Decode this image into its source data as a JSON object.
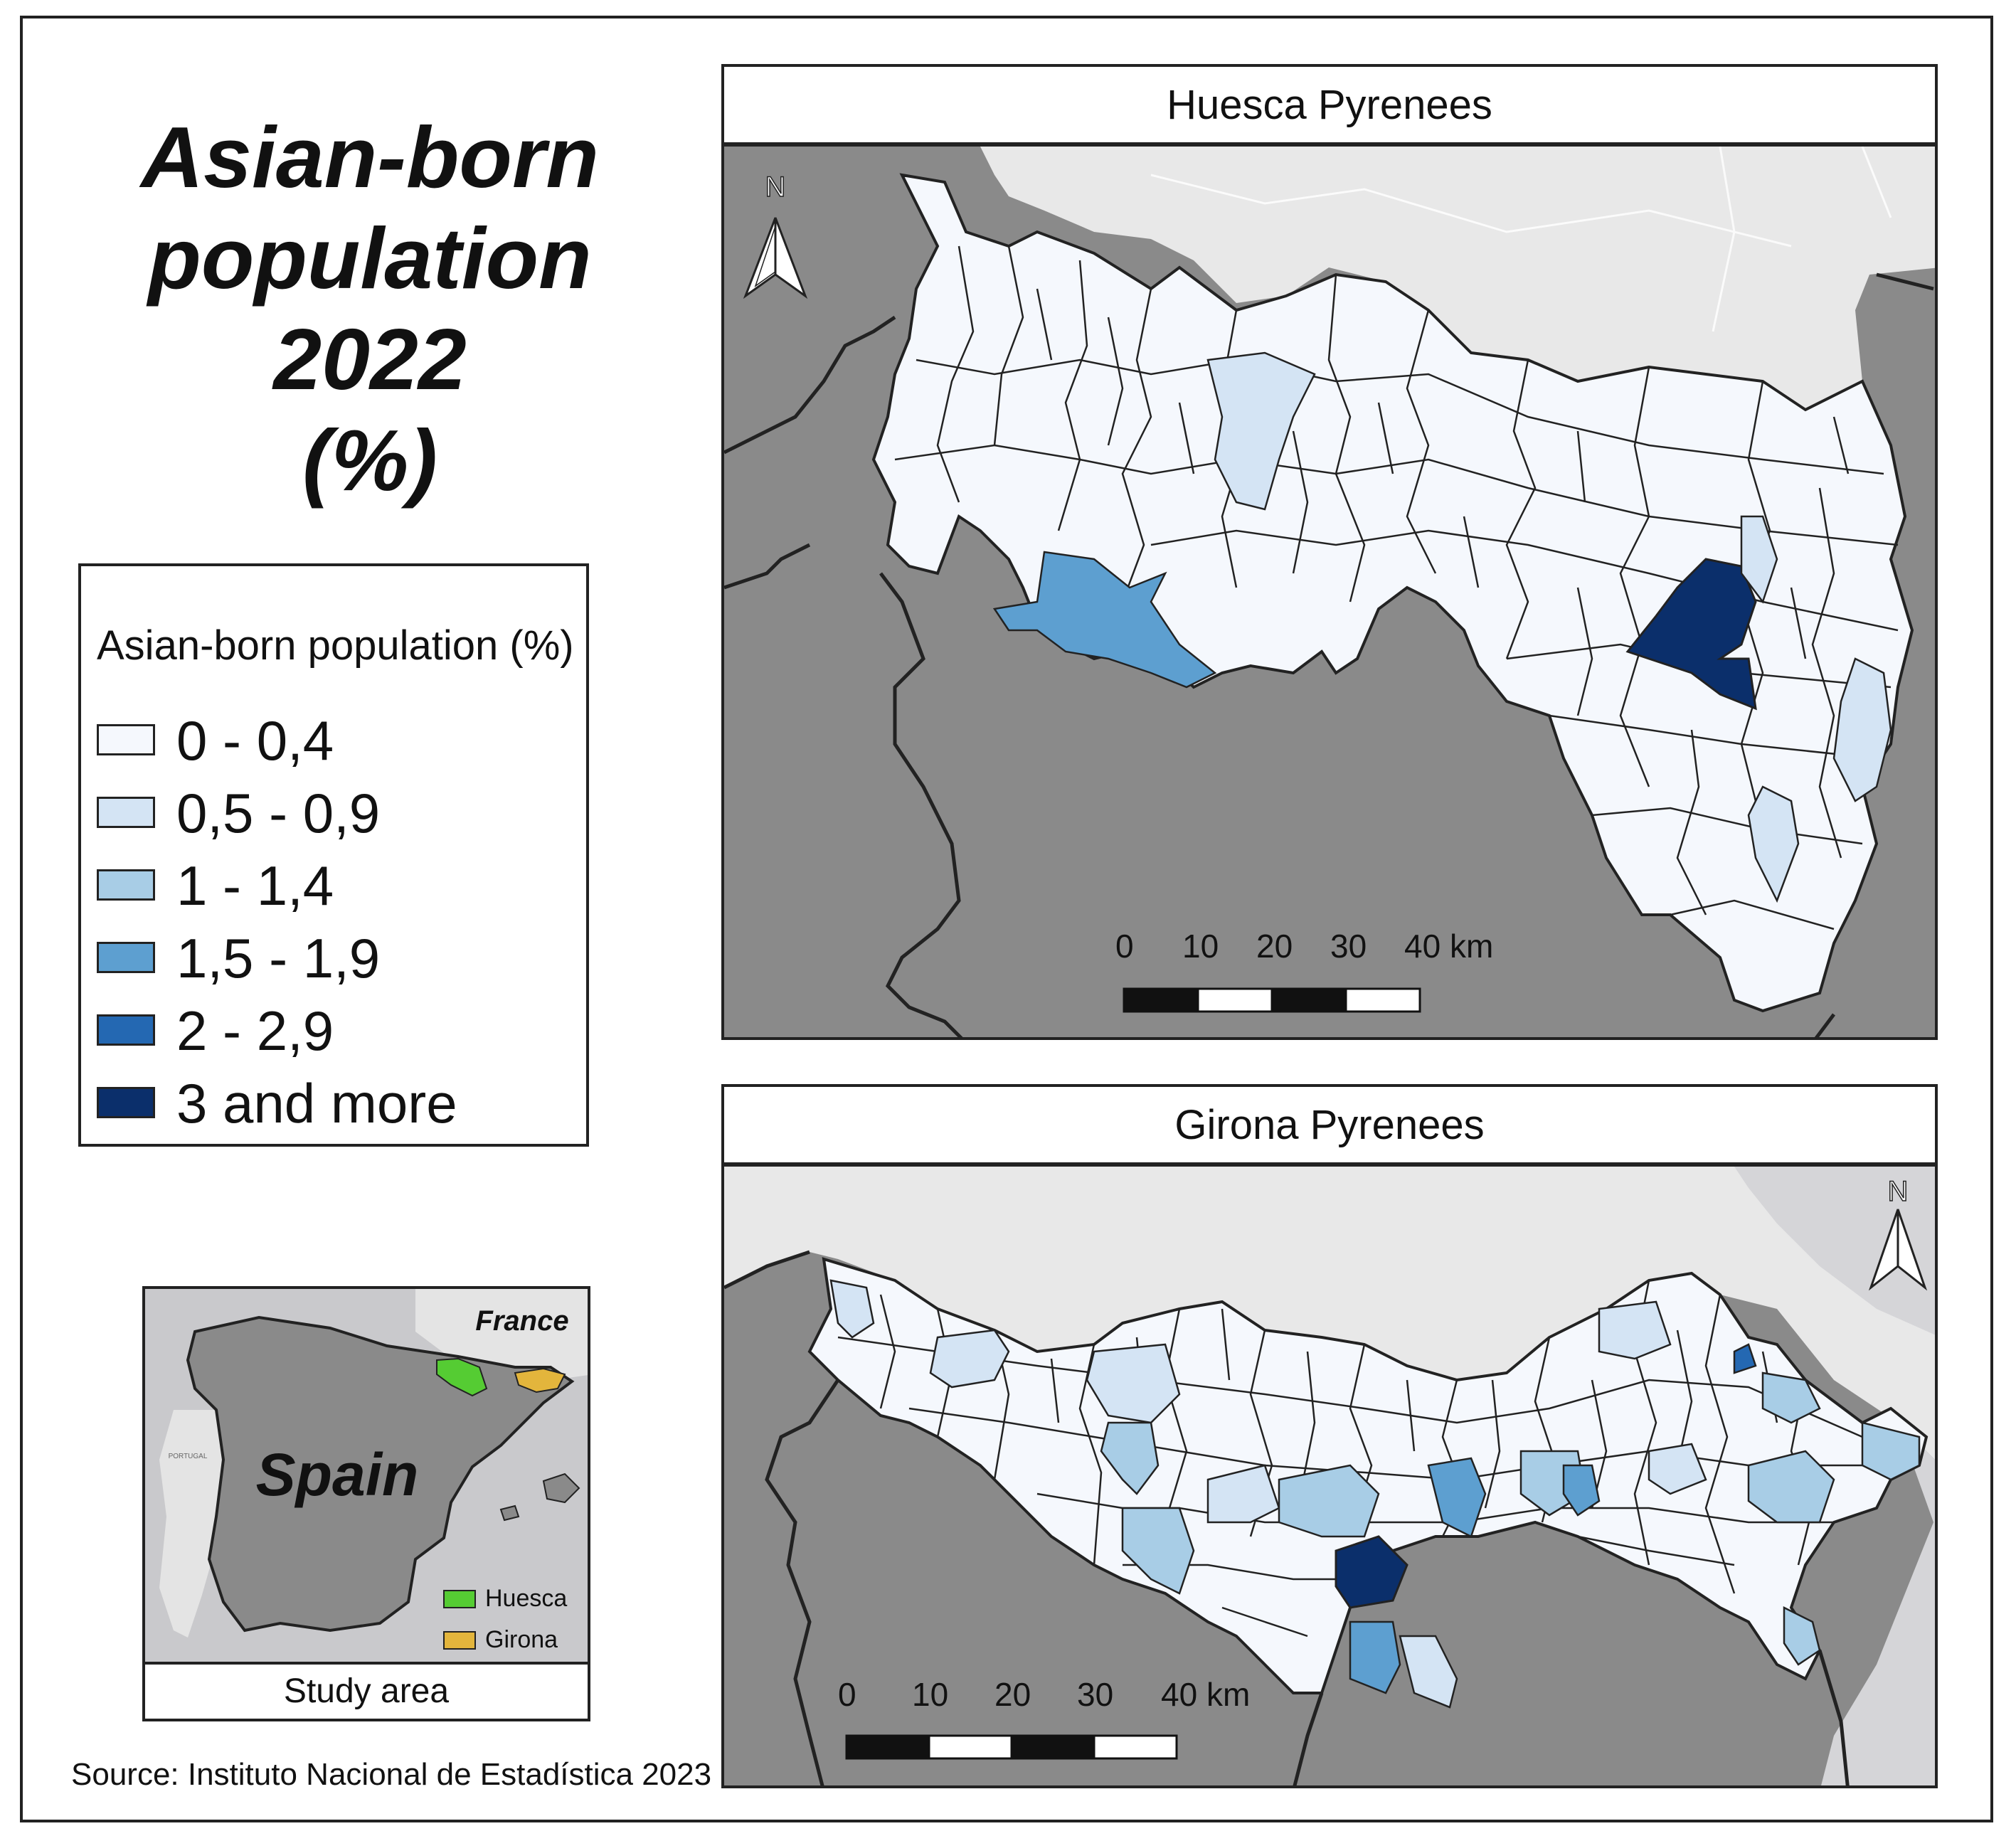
{
  "title": {
    "line1": "Asian-born",
    "line2": "population 2022",
    "line3": "(%)"
  },
  "legend": {
    "title": "Asian-born population (%)",
    "items": [
      {
        "label": "0 - 0,4",
        "color": "#f5f8fd"
      },
      {
        "label": "0,5 - 0,9",
        "color": "#d4e4f4"
      },
      {
        "label": "1 - 1,4",
        "color": "#a8cde6"
      },
      {
        "label": "1,5 - 1,9",
        "color": "#5d9fd0"
      },
      {
        "label": "2 - 2,9",
        "color": "#2468b2"
      },
      {
        "label": "3 and more",
        "color": "#0b2f6b"
      }
    ]
  },
  "panels": {
    "huesca": {
      "title": "Huesca Pyrenees",
      "north": "N",
      "scale_labels": [
        "0",
        "10",
        "20",
        "30",
        "40 km"
      ]
    },
    "girona": {
      "title": "Girona Pyrenees",
      "north": "N",
      "scale_labels": [
        "0",
        "10",
        "20",
        "30",
        "40 km"
      ]
    }
  },
  "inset": {
    "country_label": "Spain",
    "france_label": "France",
    "portugal_label": "PORTUGAL",
    "legend": [
      {
        "label": "Huesca",
        "color": "#55cc33"
      },
      {
        "label": "Girona",
        "color": "#e3b53c"
      }
    ],
    "caption": "Study area"
  },
  "source": "Source: Instituto Nacional de Estadística 2023",
  "colors": {
    "outside": "#8a8a8a",
    "france": "#e8e8e8",
    "border": "#222222"
  }
}
